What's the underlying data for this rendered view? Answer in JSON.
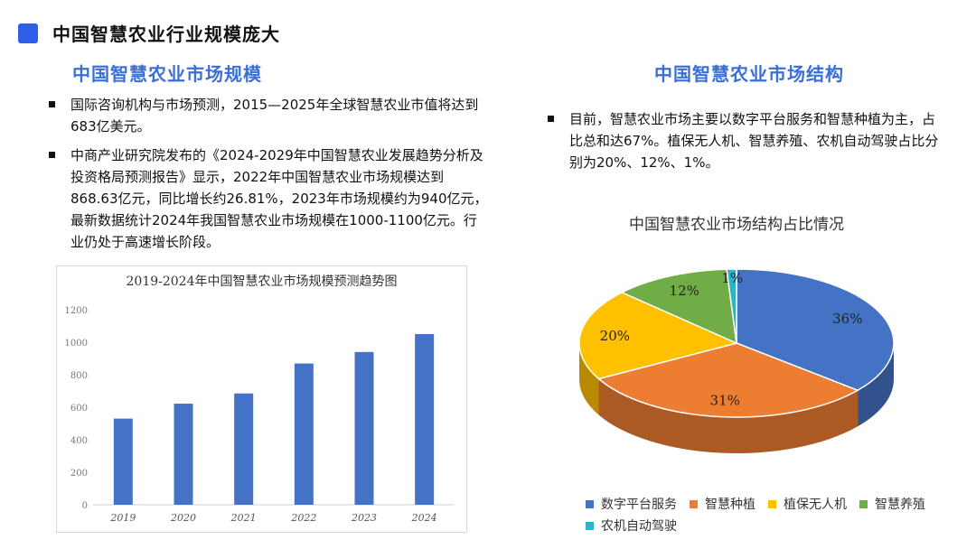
{
  "header": {
    "title": "中国智慧农业行业规模庞大"
  },
  "left": {
    "heading": "中国智慧农业市场规模",
    "bullets": [
      "国际咨询机构与市场预测，2015—2025年全球智慧农业市值将达到683亿美元。",
      "中商产业研究院发布的《2024-2029年中国智慧农业发展趋势分析及投资格局预测报告》显示，2022年中国智慧农业市场规模达到868.63亿元，同比增长约26.81%，2023年市场规模约为940亿元，最新数据统计2024年我国智慧农业市场规模在1000-1100亿元。行业仍处于高速增长阶段。"
    ]
  },
  "right": {
    "heading": "中国智慧农业市场结构",
    "bullets": [
      "目前，智慧农业市场主要以数字平台服务和智慧种植为主，占比总和达67%。植保无人机、智慧养殖、农机自动驾驶占比分别为20%、12%、1%。"
    ]
  },
  "chart_data": [
    {
      "type": "bar",
      "title": "2019-2024年中国智慧农业市场规模预测趋势图",
      "categories": [
        "2019",
        "2020",
        "2021",
        "2022",
        "2023",
        "2024"
      ],
      "values": [
        530,
        622,
        685,
        869,
        940,
        1050
      ],
      "ylim": [
        0,
        1200
      ],
      "yticks": [
        0,
        200,
        400,
        600,
        800,
        1000,
        1200
      ],
      "grid": false,
      "color": "#4472c4"
    },
    {
      "type": "pie",
      "title": "中国智慧农业市场结构占比情况",
      "slices": [
        {
          "label": "数字平台服务",
          "value": 36,
          "text": "36%",
          "color": "#4472c4"
        },
        {
          "label": "智慧种植",
          "value": 31,
          "text": "31%",
          "color": "#ed7d31"
        },
        {
          "label": "植保无人机",
          "value": 20,
          "text": "20%",
          "color": "#ffc000"
        },
        {
          "label": "智慧养殖",
          "value": 12,
          "text": "12%",
          "color": "#70ad47"
        },
        {
          "label": "农机自动驾驶",
          "value": 1,
          "text": "1%",
          "color": "#29b6c8"
        }
      ],
      "legend": "bottom"
    }
  ]
}
